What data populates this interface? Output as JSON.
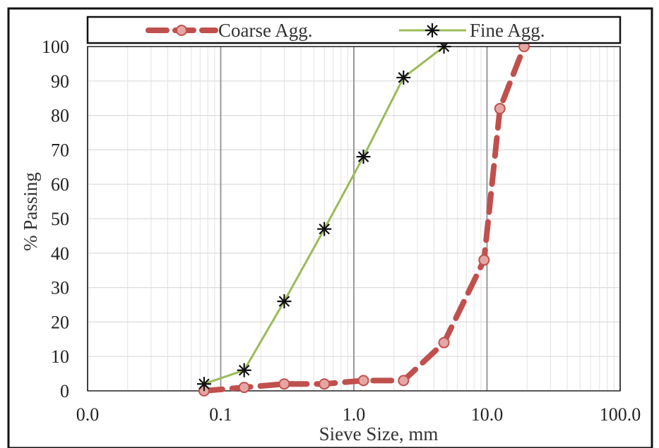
{
  "chart_data": {
    "type": "line",
    "title": "",
    "xlabel": "Sieve Size, mm",
    "ylabel": "% Passing",
    "x_scale": "log",
    "xlim": [
      0.01,
      100
    ],
    "ylim": [
      0,
      100
    ],
    "x_ticks": [
      {
        "value": 0.01,
        "label": "0.0"
      },
      {
        "value": 0.1,
        "label": "0.1"
      },
      {
        "value": 1,
        "label": "1.0"
      },
      {
        "value": 10,
        "label": "10.0"
      },
      {
        "value": 100,
        "label": "100.0"
      }
    ],
    "y_ticks": [
      0,
      10,
      20,
      30,
      40,
      50,
      60,
      70,
      80,
      90,
      100
    ],
    "grid": true,
    "legend_position": "top",
    "series": [
      {
        "name": "Coarse Agg.",
        "color": "#c0504d",
        "marker_fill": "#e6a6a4",
        "line_style": "dashed",
        "marker": "circle",
        "x": [
          0.075,
          0.15,
          0.3,
          0.6,
          1.18,
          2.36,
          4.75,
          9.5,
          12.5,
          19
        ],
        "y": [
          0,
          1,
          2,
          2,
          3,
          3,
          14,
          38,
          82,
          100
        ]
      },
      {
        "name": "Fine Agg.",
        "color": "#9bbb59",
        "marker_color": "#111111",
        "line_style": "solid",
        "marker": "asterisk",
        "x": [
          0.075,
          0.15,
          0.3,
          0.6,
          1.18,
          2.36,
          4.75
        ],
        "y": [
          2,
          6,
          26,
          47,
          68,
          91,
          100
        ]
      }
    ]
  }
}
